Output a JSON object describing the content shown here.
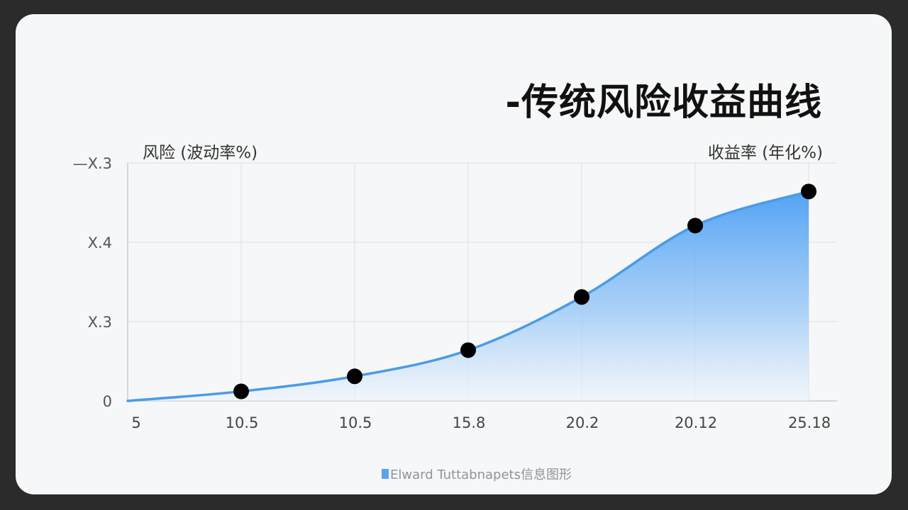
{
  "chart_data": {
    "type": "area",
    "title": "-传统风险收益曲线",
    "ylabel": "风险 (波动率%)",
    "xlabel": "收益率 (年化%)",
    "x_tick_labels": [
      "5",
      "10.5",
      "10.5",
      "15.8",
      "20.2",
      "20.12",
      "25.18"
    ],
    "y_tick_labels": [
      "0",
      "X.3",
      "X.4",
      "—X.3"
    ],
    "ylim": [
      0,
      3
    ],
    "grid": true,
    "points": [
      {
        "category_index": 1,
        "y": 0.12
      },
      {
        "category_index": 2,
        "y": 0.31
      },
      {
        "category_index": 3,
        "y": 0.64
      },
      {
        "category_index": 4,
        "y": 1.31
      },
      {
        "category_index": 5,
        "y": 2.21
      },
      {
        "category_index": 6,
        "y": 2.64
      }
    ],
    "curve_start": {
      "category_index": 0,
      "y": 0.0
    },
    "caption": "Elward Tuttabnapets信息图形",
    "colors": {
      "line": "#4a9be6",
      "fill_top": "#4a9ef4",
      "fill_bottom": "#eef4fb",
      "point": "#000000",
      "grid": "#dcdfe3",
      "axis": "#c8ccd0"
    }
  }
}
